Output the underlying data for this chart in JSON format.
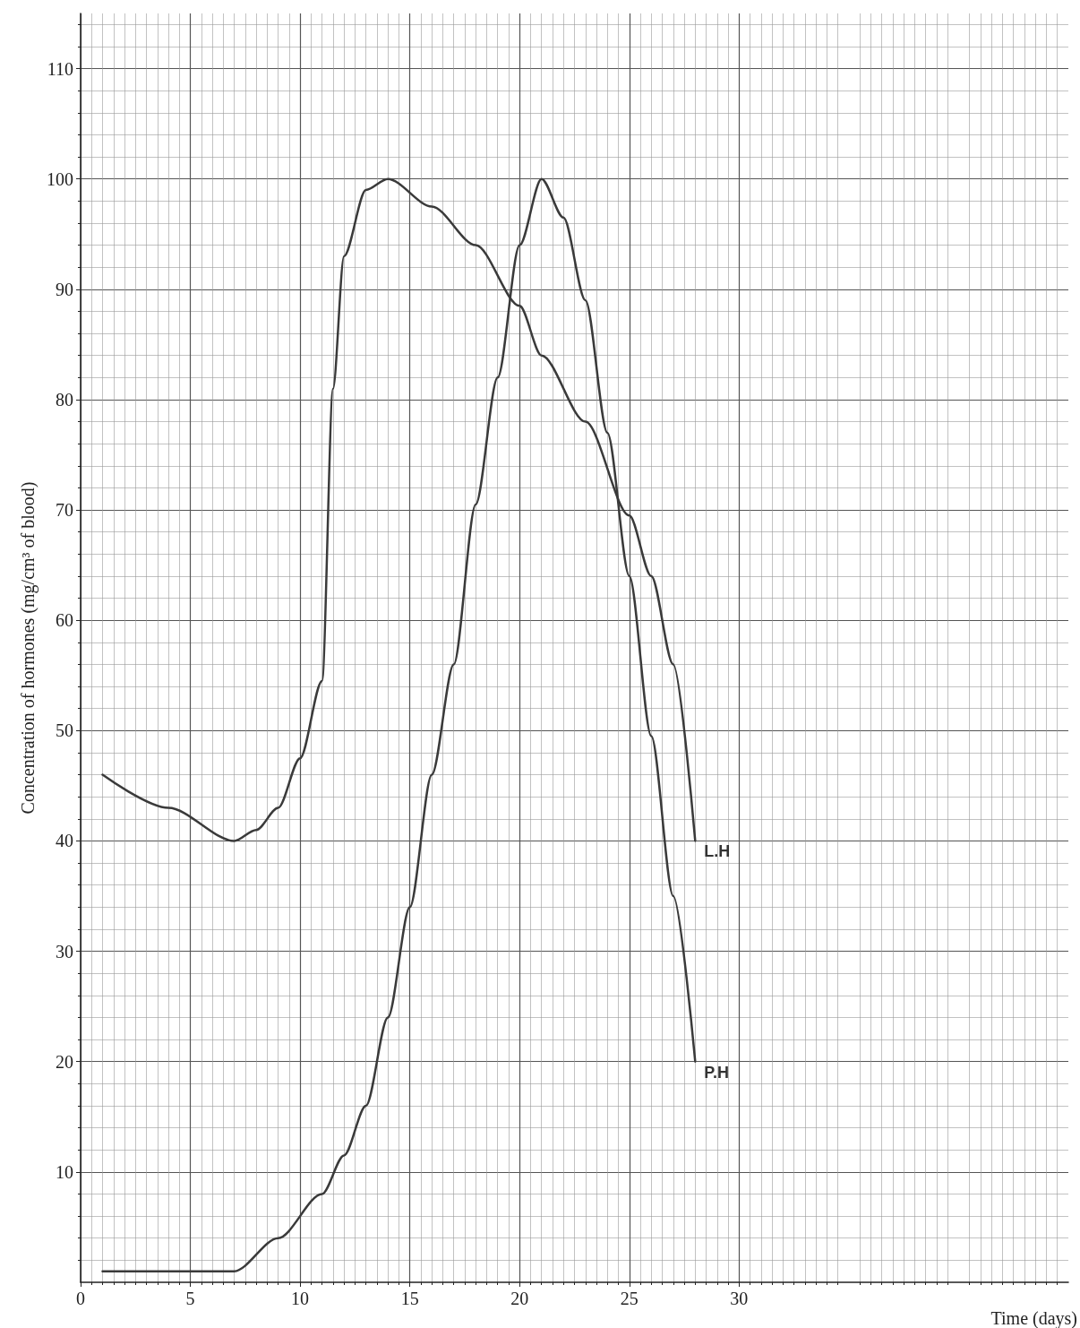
{
  "chart_data": {
    "type": "line",
    "xlabel": "Time (days)",
    "ylabel": "Concentration of hormones (mg/cm³ of blood)",
    "xlim": [
      0,
      45
    ],
    "ylim": [
      0,
      115
    ],
    "xticks": [
      0,
      5,
      10,
      15,
      20,
      25,
      30
    ],
    "yticks": [
      10,
      20,
      30,
      40,
      50,
      60,
      70,
      80,
      90,
      100,
      110
    ],
    "grid": true,
    "legend": false,
    "marker": "none",
    "line_style": "solid",
    "series": [
      {
        "name": "L.H",
        "color": "#3a3a3a",
        "x": [
          1,
          4,
          7,
          8,
          9,
          10,
          11,
          11.5,
          12,
          13,
          14,
          16,
          18,
          20,
          21,
          23,
          25,
          26,
          27,
          28
        ],
        "values": [
          46,
          43,
          40,
          41,
          43,
          47.5,
          54.5,
          81,
          93,
          99,
          100,
          97.5,
          94,
          88.5,
          84,
          78,
          69.5,
          64,
          56,
          40
        ]
      },
      {
        "name": "P.H",
        "color": "#3a3a3a",
        "x": [
          1,
          7,
          9,
          11,
          12,
          13,
          14,
          15,
          16,
          17,
          18,
          19,
          20,
          21,
          22,
          23,
          24,
          25,
          26,
          27,
          28
        ],
        "values": [
          1,
          1,
          4,
          8,
          11.5,
          16,
          24,
          34,
          46,
          56,
          70.5,
          82,
          94,
          100,
          96.5,
          89,
          77,
          64,
          49.5,
          35,
          20
        ]
      }
    ]
  }
}
